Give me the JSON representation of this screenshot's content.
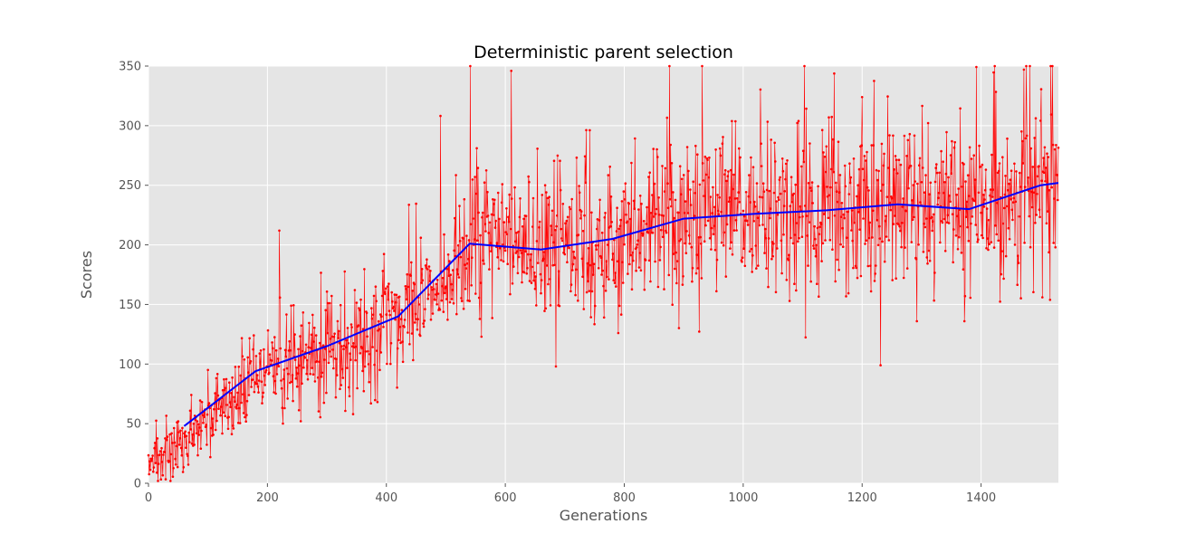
{
  "chart_data": {
    "type": "line",
    "title": "Deterministic parent selection",
    "xlabel": "Generations",
    "ylabel": "Scores",
    "xlim": [
      0,
      1530
    ],
    "ylim": [
      0,
      350
    ],
    "x_ticks": [
      0,
      200,
      400,
      600,
      800,
      1000,
      1200,
      1400
    ],
    "y_ticks": [
      0,
      50,
      100,
      150,
      200,
      250,
      300,
      350
    ],
    "x_tick_labels": [
      "0",
      "200",
      "400",
      "600",
      "800",
      "1000",
      "1200",
      "1400"
    ],
    "y_tick_labels": [
      "0",
      "50",
      "100",
      "150",
      "200",
      "250",
      "300",
      "350"
    ],
    "grid": true,
    "background": "#e5e5e5",
    "n_generations": 1530,
    "series": [
      {
        "style": "line-with-markers",
        "color": "#ff0000",
        "trend_points": [
          [
            0,
            10
          ],
          [
            60,
            38
          ],
          [
            180,
            92
          ],
          [
            300,
            113
          ],
          [
            420,
            138
          ],
          [
            540,
            200
          ],
          [
            660,
            196
          ],
          [
            780,
            205
          ],
          [
            900,
            222
          ],
          [
            1020,
            226
          ],
          [
            1140,
            228
          ],
          [
            1260,
            233
          ],
          [
            1380,
            228
          ],
          [
            1500,
            248
          ],
          [
            1530,
            252
          ]
        ],
        "noise_amplitude": [
          [
            0,
            15
          ],
          [
            180,
            22
          ],
          [
            420,
            35
          ],
          [
            540,
            45
          ],
          [
            1530,
            48
          ]
        ],
        "notable_points": [
          [
            220,
            212
          ],
          [
            541,
            350
          ],
          [
            610,
            346
          ],
          [
            685,
            98
          ],
          [
            1292,
            136
          ],
          [
            1372,
            136
          ]
        ]
      },
      {
        "style": "line",
        "color": "#0000ff",
        "x": [
          60,
          180,
          300,
          420,
          540,
          660,
          780,
          900,
          1020,
          1140,
          1260,
          1380,
          1500,
          1530
        ],
        "values": [
          48,
          94,
          115,
          140,
          201,
          196,
          205,
          222,
          226,
          229,
          234,
          230,
          250,
          252
        ]
      }
    ]
  }
}
